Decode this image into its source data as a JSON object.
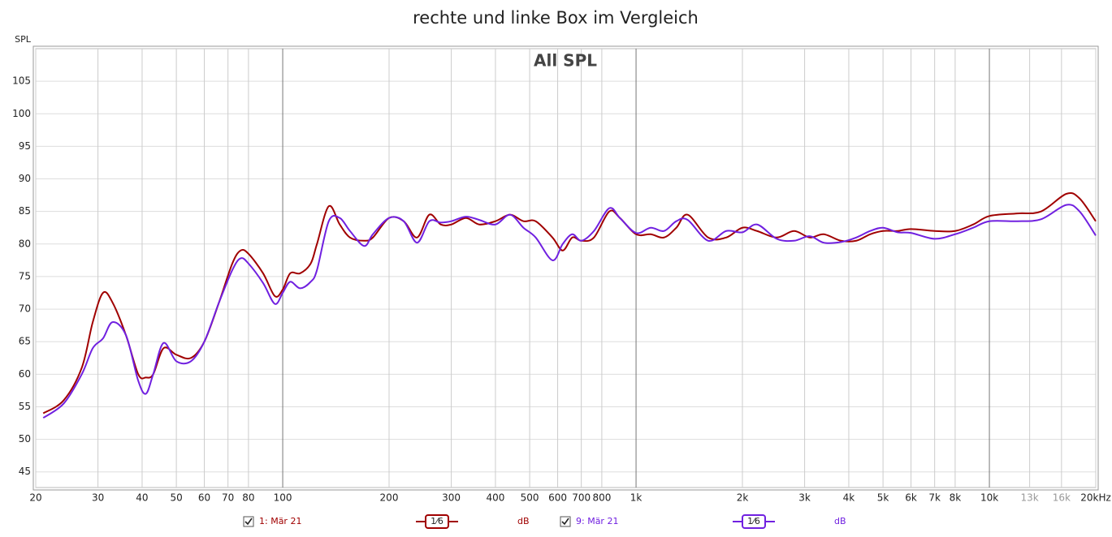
{
  "chart_data": {
    "type": "line",
    "title": "rechte und linke Box im Vergleich",
    "subtitle": "All SPL",
    "y_label": "SPL",
    "x_scale": "log",
    "grid": true,
    "xlim": [
      20,
      20000
    ],
    "ylim": [
      42.6,
      110
    ],
    "xticks": [
      20,
      30,
      40,
      50,
      60,
      70,
      80,
      100,
      200,
      300,
      400,
      500,
      600,
      700,
      800,
      {
        "value": 1000,
        "label": "1k"
      },
      {
        "value": 2000,
        "label": "2k"
      },
      {
        "value": 3000,
        "label": "3k"
      },
      {
        "value": 4000,
        "label": "4k"
      },
      {
        "value": 5000,
        "label": "5k"
      },
      {
        "value": 6000,
        "label": "6k"
      },
      {
        "value": 7000,
        "label": "7k"
      },
      {
        "value": 8000,
        "label": "8k"
      },
      {
        "value": 10000,
        "label": "10k"
      },
      {
        "value": 13000,
        "label": "13k"
      },
      {
        "value": 16000,
        "label": "16k"
      },
      {
        "value": 20000,
        "label": "20kHz"
      }
    ],
    "yticks": [
      45,
      50,
      55,
      60,
      65,
      70,
      75,
      80,
      85,
      90,
      95,
      100,
      105
    ],
    "x": [
      21,
      24,
      27,
      29,
      31,
      33,
      36,
      39,
      41,
      43,
      46,
      50,
      55,
      60,
      66,
      72,
      76,
      80,
      88,
      95,
      100,
      105,
      112,
      120,
      125,
      135,
      145,
      155,
      170,
      180,
      200,
      220,
      240,
      260,
      280,
      300,
      330,
      360,
      400,
      440,
      480,
      520,
      580,
      620,
      660,
      700,
      760,
      840,
      900,
      1000,
      1100,
      1200,
      1300,
      1400,
      1600,
      1800,
      2000,
      2200,
      2500,
      2800,
      3100,
      3400,
      3800,
      4200,
      4600,
      5000,
      5500,
      6000,
      7000,
      8000,
      9000,
      10000,
      12000,
      14000,
      16500,
      18000,
      20000
    ],
    "series": [
      {
        "name": "1: Mär 21",
        "smoothing": "1⁄6",
        "unit": "dB",
        "color": "#a00000",
        "values": [
          54,
          56,
          61,
          68,
          72.5,
          71,
          66,
          60,
          59.5,
          60,
          64,
          63,
          62.5,
          65,
          71,
          77,
          79,
          78.5,
          75.5,
          72,
          73,
          75.5,
          75.5,
          77,
          80,
          85.8,
          83,
          81,
          80.5,
          81,
          84,
          83.5,
          81,
          84.5,
          83,
          83,
          84,
          83,
          83.5,
          84.5,
          83.5,
          83.5,
          81,
          79,
          81,
          80.5,
          81,
          85,
          84,
          81.5,
          81.5,
          81,
          82.5,
          84.5,
          81,
          81,
          82.5,
          82,
          81,
          82,
          81,
          81.5,
          80.5,
          80.5,
          81.5,
          82,
          82,
          82.3,
          82,
          82,
          83,
          84.3,
          84.7,
          85,
          87.7,
          87,
          83.5
        ]
      },
      {
        "name": "9: Mär 21",
        "smoothing": "1⁄6",
        "unit": "dB",
        "color": "#7020e0",
        "values": [
          53.3,
          55.5,
          60,
          64,
          65.5,
          68,
          66,
          59,
          57,
          60,
          64.8,
          62,
          62,
          65,
          71,
          76,
          77.8,
          77,
          74,
          70.8,
          72.5,
          74.2,
          73.2,
          74.2,
          76,
          83.5,
          84,
          82,
          79.7,
          81.5,
          84,
          83.5,
          80.2,
          83.5,
          83.3,
          83.5,
          84.2,
          83.7,
          83,
          84.5,
          82.5,
          81,
          77.5,
          80,
          81.5,
          80.5,
          82,
          85.5,
          84,
          81.7,
          82.5,
          82,
          83.5,
          83.7,
          80.5,
          82,
          81.8,
          83,
          80.8,
          80.5,
          81.2,
          80.2,
          80.3,
          81,
          82,
          82.5,
          81.8,
          81.7,
          80.8,
          81.5,
          82.5,
          83.5,
          83.5,
          83.8,
          86,
          85,
          81.3
        ]
      }
    ]
  }
}
